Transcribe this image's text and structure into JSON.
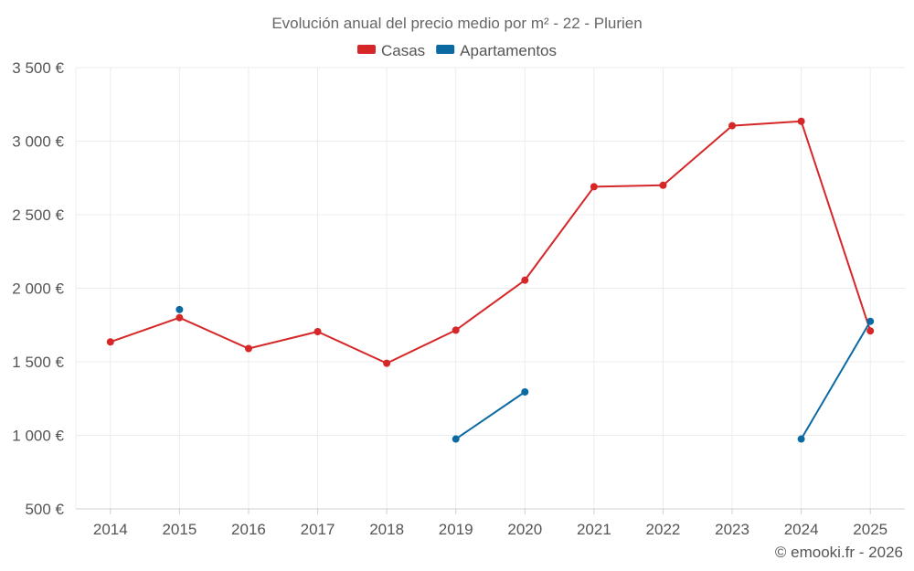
{
  "chart_data": {
    "type": "line",
    "title": "Evolución anual del precio medio por m² - 22 - Plurien",
    "categories": [
      "2014",
      "2015",
      "2016",
      "2017",
      "2018",
      "2019",
      "2020",
      "2021",
      "2022",
      "2023",
      "2024",
      "2025"
    ],
    "series": [
      {
        "name": "Casas",
        "color": "#d62728",
        "values": [
          1635,
          1800,
          1590,
          1705,
          1490,
          1715,
          2055,
          2690,
          2700,
          3105,
          3135,
          1710
        ]
      },
      {
        "name": "Apartamentos",
        "color": "#0b6aa2",
        "values": [
          null,
          1855,
          null,
          null,
          null,
          975,
          1295,
          null,
          null,
          null,
          975,
          1775
        ]
      }
    ],
    "y_ticks": [
      500,
      1000,
      1500,
      2000,
      2500,
      3000,
      3500
    ],
    "y_tick_labels": [
      "500 €",
      "1 000 €",
      "1 500 €",
      "2 000 €",
      "2 500 €",
      "3 000 €",
      "3 500 €"
    ],
    "ylim": [
      500,
      3500
    ],
    "grid": true,
    "legend_position": "top-center",
    "credit": "© emooki.fr - 2026"
  }
}
